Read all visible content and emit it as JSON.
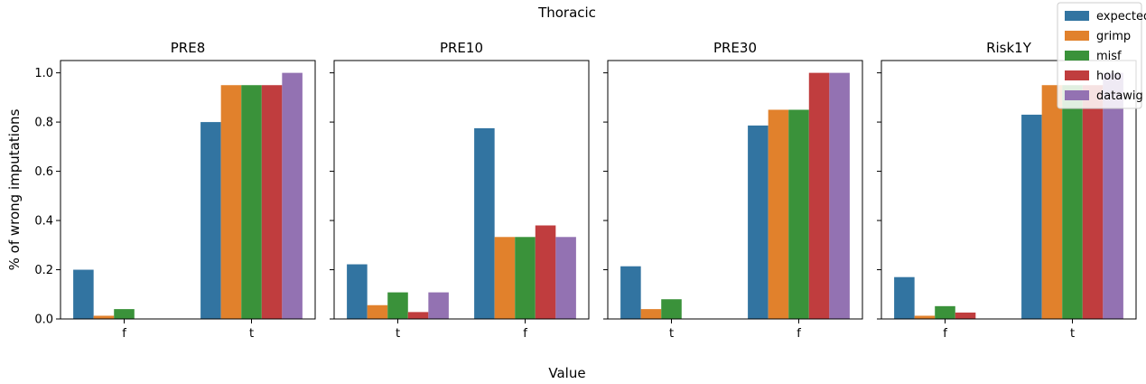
{
  "figure": {
    "title": "Thoracic",
    "xlabel": "Value",
    "ylabel": "% of wrong imputations"
  },
  "legend": {
    "placement": "top-right",
    "entries": [
      {
        "name": "expected",
        "color": "#3274a1"
      },
      {
        "name": "grimp",
        "color": "#e1812c"
      },
      {
        "name": "misf",
        "color": "#3a923a"
      },
      {
        "name": "holo",
        "color": "#c03d3e"
      },
      {
        "name": "datawig",
        "color": "#9372b2"
      }
    ]
  },
  "chart_data": [
    {
      "type": "bar",
      "title": "PRE8",
      "categories": [
        "f",
        "t"
      ],
      "ylim": [
        0,
        1.05
      ],
      "yticks": [
        "0.0",
        "0.2",
        "0.4",
        "0.6",
        "0.8",
        "1.0"
      ],
      "series": [
        {
          "name": "expected",
          "values": [
            0.2,
            0.8
          ]
        },
        {
          "name": "grimp",
          "values": [
            0.013,
            0.95
          ]
        },
        {
          "name": "misf",
          "values": [
            0.04,
            0.95
          ]
        },
        {
          "name": "holo",
          "values": [
            0.0,
            0.95
          ]
        },
        {
          "name": "datawig",
          "values": [
            0.0,
            1.0
          ]
        }
      ]
    },
    {
      "type": "bar",
      "title": "PRE10",
      "categories": [
        "t",
        "f"
      ],
      "ylim": [
        0,
        1.05
      ],
      "series": [
        {
          "name": "expected",
          "values": [
            0.222,
            0.775
          ]
        },
        {
          "name": "grimp",
          "values": [
            0.056,
            0.333
          ]
        },
        {
          "name": "misf",
          "values": [
            0.108,
            0.333
          ]
        },
        {
          "name": "holo",
          "values": [
            0.028,
            0.38
          ]
        },
        {
          "name": "datawig",
          "values": [
            0.108,
            0.333
          ]
        }
      ]
    },
    {
      "type": "bar",
      "title": "PRE30",
      "categories": [
        "t",
        "f"
      ],
      "ylim": [
        0,
        1.05
      ],
      "series": [
        {
          "name": "expected",
          "values": [
            0.214,
            0.786
          ]
        },
        {
          "name": "grimp",
          "values": [
            0.04,
            0.85
          ]
        },
        {
          "name": "misf",
          "values": [
            0.08,
            0.85
          ]
        },
        {
          "name": "holo",
          "values": [
            0.0,
            1.0
          ]
        },
        {
          "name": "datawig",
          "values": [
            0.0,
            1.0
          ]
        }
      ]
    },
    {
      "type": "bar",
      "title": "Risk1Y",
      "categories": [
        "f",
        "t"
      ],
      "ylim": [
        0,
        1.05
      ],
      "series": [
        {
          "name": "expected",
          "values": [
            0.17,
            0.83
          ]
        },
        {
          "name": "grimp",
          "values": [
            0.013,
            0.95
          ]
        },
        {
          "name": "misf",
          "values": [
            0.052,
            0.95
          ]
        },
        {
          "name": "holo",
          "values": [
            0.026,
            0.95
          ]
        },
        {
          "name": "datawig",
          "values": [
            0.0,
            1.0
          ]
        }
      ]
    }
  ]
}
